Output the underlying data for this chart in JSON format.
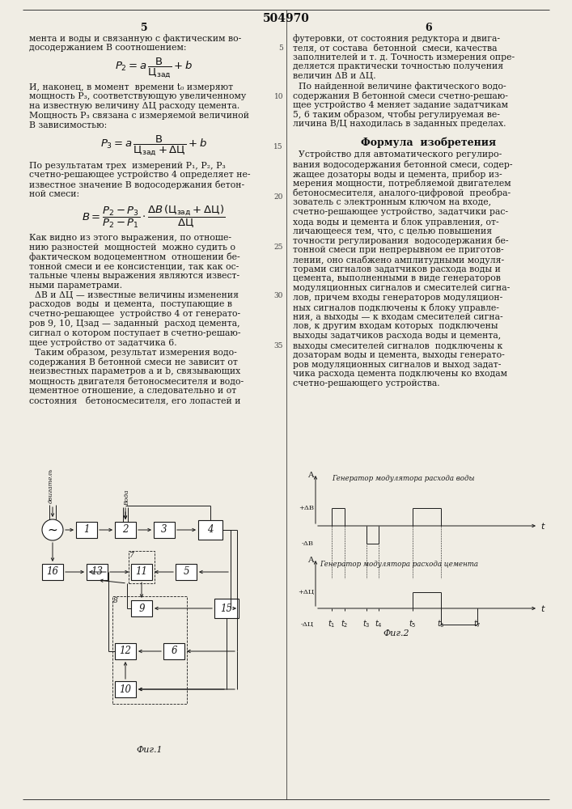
{
  "page_width": 7.07,
  "page_height": 10.0,
  "background_color": "#f0ede4",
  "patent_number": "504970",
  "col1_text": [
    "мента и воды и связанную с фактическим во-",
    "досодержанием В соотношением:"
  ],
  "para1": [
    "И, наконец, в момент  времени t₀ измеряют",
    "мощность P₃, соответствующую увеличенному",
    "на известную величину ΔЦ расходу цемента.",
    "Мощность P₃ связана с измеряемой величиной",
    "В зависимостью:"
  ],
  "para2": [
    "По результатам трех  измерений P₁, P₂, P₃",
    "счетно-решающее устройство 4 определяет не-",
    "известное значение В водосодержания бетон-",
    "ной смеси:"
  ],
  "para3": [
    "Как видно из этого выражения, по отноше-",
    "нию разностей  мощностей  можно судить о",
    "фактическом водоцементном  отношении бе-",
    "тонной смеси и ее консистенции, так как ос-",
    "тальные члены выражения являются извест-",
    "ными параметрами.",
    "  ΔВ и ΔЦ — известные величины изменения",
    "расходов  воды  и цемента,  поступающие в",
    "счетно-решающее  устройство 4 от генерато-"
  ],
  "para3_cont": [
    "ров 9, 10, Цзад — заданный  расход цемента,",
    "сигнал о котором поступает в счетно-решаю-",
    "щее устройство от задатчика 6.",
    "  Таким образом, результат измерения водо-",
    "содержания В бетонной смеси не зависит от",
    "неизвестных параметров a и b, связывающих",
    "мощность двигателя бетоносмесителя и водо-",
    "цементное отношение, а следовательно и от",
    "состояния   бетоносмесителя, его лопастей и"
  ],
  "col2_text_top": [
    "футеровки, от состояния редуктора и двига-",
    "теля, от состава  бетонной  смеси, качества",
    "заполнителей и т. д. Точность измерения опре-",
    "деляется практически точностью получения",
    "величин ΔВ и ΔЦ.",
    "  По найденной величине фактического водо-",
    "содержания В бетонной смеси счетно-решаю-",
    "щее устройство 4 меняет задание задатчикам",
    "5, 6 таким образом, чтобы регулируемая ве-",
    "личина В/Ц находилась в заданных пределах."
  ],
  "claim_text": [
    "  Устройство для автоматического регулиро-",
    "вания водосодержания бетонной смеси, содер-",
    "жащее дозаторы воды и цемента, прибор из-",
    "мерения мощности, потребляемой двигателем",
    "бетоносмесителя, аналого-цифровой  преобра-",
    "зователь с электронным ключом на входе,",
    "счетно-решающее устройство, задатчики рас-",
    "хода воды и цемента и блок управления, от-",
    "личающееся тем, что, с целью повышения",
    "точности регулирования  водосодержания бе-",
    "тонной смеси при непрерывном ее приготов-",
    "лении, оно снабжено амплитудными модуля-",
    "торами сигналов задатчиков расхода воды и",
    "цемента, выполненными в виде генераторов",
    "модуляционных сигналов и смесителей сигна-",
    "лов, причем входы генераторов модуляцион-",
    "ных сигналов подключены к блоку управле-",
    "ния, а выходы — к входам смесителей сигна-",
    "лов, к другим входам которых  подключены",
    "выходы задатчиков расхода воды и цемента,",
    "выходы смесителей сигналов  подключены к",
    "дозаторам воды и цемента, выходы генерато-",
    "ров модуляционных сигналов и выход задат-",
    "чика расхода цемента подключены ко входам",
    "счетно-решающего устройства."
  ],
  "line_number_35": "35"
}
